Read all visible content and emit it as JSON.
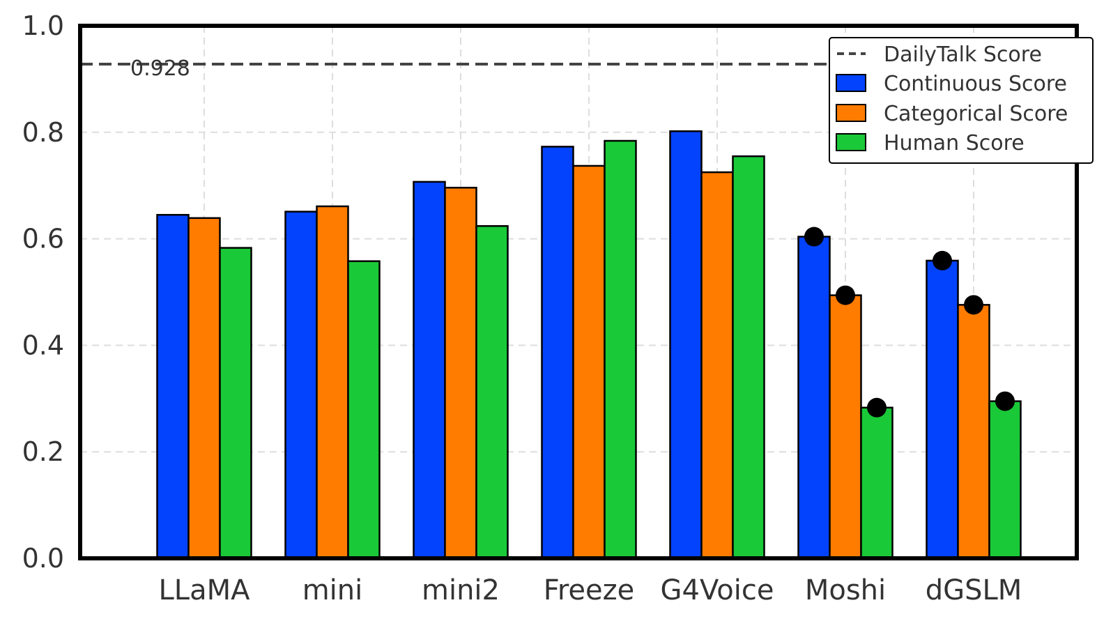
{
  "chart_data": {
    "type": "bar",
    "categories": [
      "LLaMA",
      "mini",
      "mini2",
      "Freeze",
      "G4Voice",
      "Moshi",
      "dGSLM"
    ],
    "series": [
      {
        "name": "Continuous Score",
        "color": "#0343fe",
        "values": [
          0.645,
          0.651,
          0.707,
          0.773,
          0.802,
          0.604,
          0.559
        ]
      },
      {
        "name": "Categorical Score",
        "color": "#ff7c00",
        "values": [
          0.639,
          0.661,
          0.696,
          0.737,
          0.725,
          0.494,
          0.476
        ]
      },
      {
        "name": "Human Score",
        "color": "#1ac938",
        "values": [
          0.583,
          0.558,
          0.624,
          0.784,
          0.755,
          0.283,
          0.295
        ]
      }
    ],
    "markers": {
      "categories": [
        "Moshi",
        "dGSLM"
      ],
      "color": "#000000"
    },
    "reference_line": {
      "name": "DailyTalk Score",
      "value": 0.928,
      "label": "0.928",
      "color": "#444444"
    },
    "ylim": [
      0.0,
      1.0
    ],
    "yticks": [
      "0.0",
      "0.2",
      "0.4",
      "0.6",
      "0.8",
      "1.0"
    ],
    "xlabel": "",
    "ylabel": "",
    "title": "",
    "grid": true,
    "legend_position": "top-right"
  }
}
